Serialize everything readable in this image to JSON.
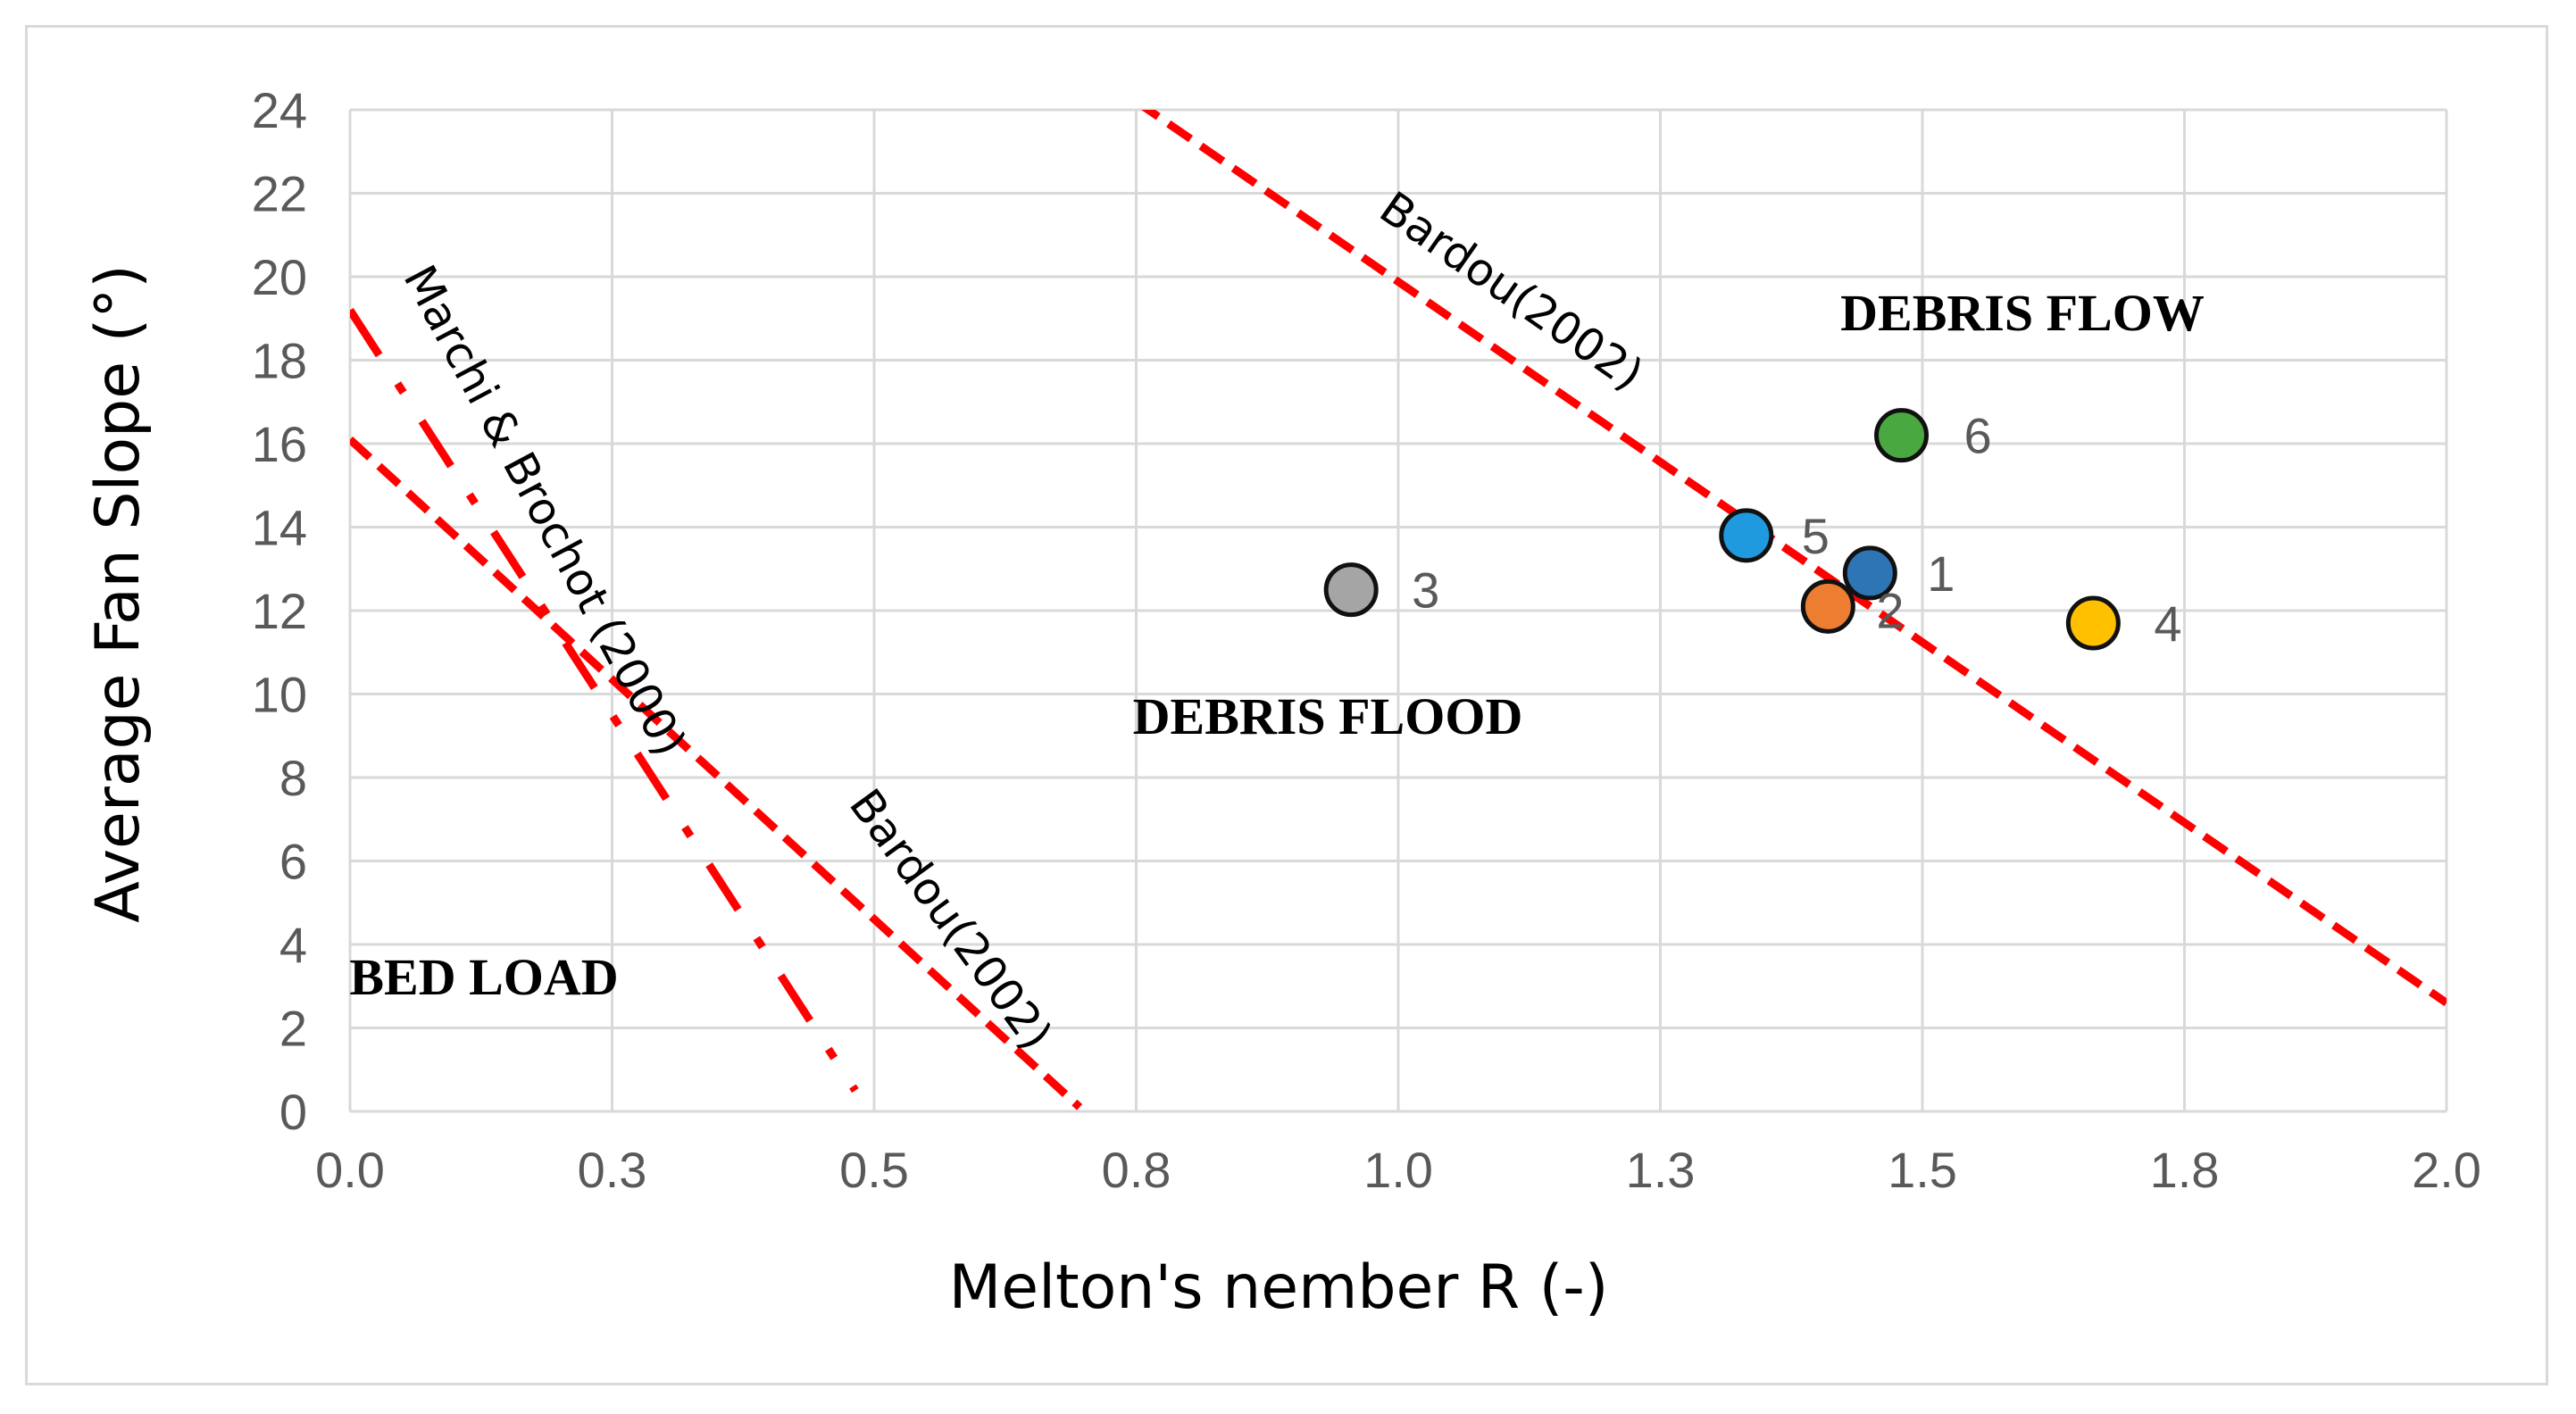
{
  "chart_data": {
    "type": "scatter",
    "title": "",
    "xlabel": "Melton's nember R (-)",
    "ylabel": "Average Fan Slope (°)",
    "xlim": [
      0,
      2.0
    ],
    "ylim": [
      0,
      24
    ],
    "grid": true,
    "x_ticks": [
      0.0,
      0.25,
      0.5,
      0.75,
      1.0,
      1.25,
      1.5,
      1.75,
      2.0
    ],
    "x_tick_labels": [
      "0.0",
      "0.3",
      "0.5",
      "0.8",
      "1.0",
      "1.3",
      "1.5",
      "1.8",
      "2.0"
    ],
    "y_ticks": [
      0,
      2,
      4,
      6,
      8,
      10,
      12,
      14,
      16,
      18,
      20,
      22,
      24
    ],
    "y_tick_labels": [
      "0",
      "2",
      "4",
      "6",
      "8",
      "10",
      "12",
      "14",
      "16",
      "18",
      "20",
      "22",
      "24"
    ],
    "points": [
      {
        "label": "1",
        "x": 1.45,
        "y": 12.9,
        "color": "#2e75b6"
      },
      {
        "label": "2",
        "x": 1.41,
        "y": 12.1,
        "color": "#ed7d31"
      },
      {
        "label": "3",
        "x": 0.955,
        "y": 12.5,
        "color": "#a5a5a5"
      },
      {
        "label": "4",
        "x": 1.663,
        "y": 11.7,
        "color": "#ffc000"
      },
      {
        "label": "5",
        "x": 1.332,
        "y": 13.8,
        "color": "#1f9ade"
      },
      {
        "label": "6",
        "x": 1.48,
        "y": 16.2,
        "color": "#4aa840"
      }
    ],
    "lines": [
      {
        "name": "Bardou(2002) upper",
        "label": "Bardou(2002)",
        "style": "dashed",
        "color": "#ff0000",
        "x": [
          0.75,
          2.0
        ],
        "y": [
          24.2,
          2.6
        ]
      },
      {
        "name": "Bardou(2002) lower",
        "label": "Bardou(2002)",
        "style": "dashed",
        "color": "#ff0000",
        "x": [
          0.0,
          0.696
        ],
        "y": [
          16.1,
          0.1
        ]
      },
      {
        "name": "Marchi & Brochot (2000)",
        "label": "Marchi & Brochot (2000)",
        "style": "dashdot",
        "color": "#ff0000",
        "x": [
          0.0,
          0.482
        ],
        "y": [
          19.2,
          0.5
        ]
      }
    ],
    "annotations": [
      "DEBRIS FLOW",
      "DEBRIS FLOOD",
      "BED LOAD"
    ]
  }
}
